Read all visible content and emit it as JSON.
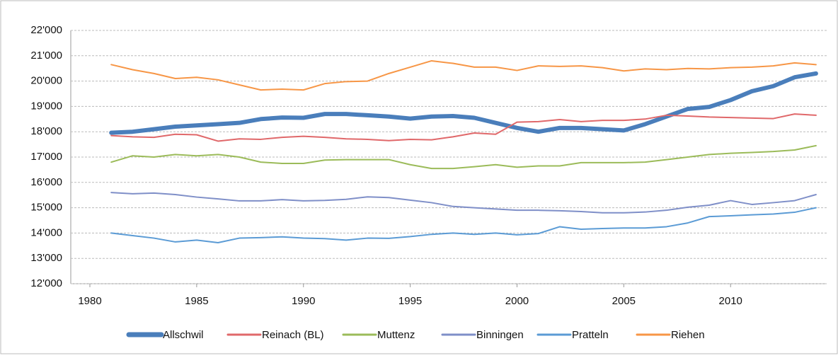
{
  "chart_data": {
    "type": "line",
    "x": [
      1981,
      1982,
      1983,
      1984,
      1985,
      1986,
      1987,
      1988,
      1989,
      1990,
      1991,
      1992,
      1993,
      1994,
      1995,
      1996,
      1997,
      1998,
      1999,
      2000,
      2001,
      2002,
      2003,
      2004,
      2005,
      2006,
      2007,
      2008,
      2009,
      2010,
      2011,
      2012,
      2013,
      2014
    ],
    "xlim": [
      1980,
      2014.5
    ],
    "xticks": [
      1980,
      1985,
      1990,
      1995,
      2000,
      2005,
      2010
    ],
    "ylim": [
      12000,
      22000
    ],
    "yticks": [
      {
        "value": 12000,
        "label": "12'000"
      },
      {
        "value": 13000,
        "label": "13'000"
      },
      {
        "value": 14000,
        "label": "14'000"
      },
      {
        "value": 15000,
        "label": "15'000"
      },
      {
        "value": 16000,
        "label": "16'000"
      },
      {
        "value": 17000,
        "label": "17'000"
      },
      {
        "value": 18000,
        "label": "18'000"
      },
      {
        "value": 19000,
        "label": "19'000"
      },
      {
        "value": 20000,
        "label": "20'000"
      },
      {
        "value": 21000,
        "label": "21'000"
      },
      {
        "value": 22000,
        "label": "22'000"
      }
    ],
    "grid": true,
    "legend": "bottom",
    "series": [
      {
        "name": "Allschwil",
        "color": "#4a7ebb",
        "width": 6,
        "values": [
          17960,
          18000,
          18100,
          18200,
          18250,
          18300,
          18350,
          18500,
          18560,
          18550,
          18700,
          18700,
          18650,
          18600,
          18520,
          18600,
          18620,
          18550,
          18350,
          18150,
          18000,
          18150,
          18150,
          18100,
          18050,
          18300,
          18600,
          18900,
          18980,
          19250,
          19600,
          19800,
          20150,
          20300
        ]
      },
      {
        "name": "Reinach (BL)",
        "color": "#e0686a",
        "width": 2,
        "values": [
          17850,
          17800,
          17780,
          17900,
          17880,
          17630,
          17720,
          17700,
          17780,
          17820,
          17780,
          17720,
          17700,
          17650,
          17700,
          17680,
          17800,
          17950,
          17900,
          18380,
          18400,
          18480,
          18400,
          18450,
          18450,
          18500,
          18650,
          18620,
          18580,
          18560,
          18540,
          18520,
          18700,
          18650
        ]
      },
      {
        "name": "Muttenz",
        "color": "#9bbb59",
        "width": 2,
        "values": [
          16800,
          17050,
          17000,
          17100,
          17050,
          17100,
          17000,
          16800,
          16750,
          16750,
          16880,
          16900,
          16900,
          16900,
          16700,
          16550,
          16550,
          16620,
          16700,
          16600,
          16650,
          16650,
          16780,
          16780,
          16780,
          16800,
          16900,
          17000,
          17100,
          17150,
          17180,
          17220,
          17280,
          17450
        ]
      },
      {
        "name": "Binningen",
        "color": "#7f8fc8",
        "width": 2,
        "values": [
          15600,
          15550,
          15580,
          15520,
          15420,
          15350,
          15270,
          15270,
          15320,
          15270,
          15290,
          15330,
          15430,
          15400,
          15300,
          15200,
          15050,
          15000,
          14950,
          14900,
          14900,
          14880,
          14850,
          14800,
          14800,
          14830,
          14900,
          15020,
          15100,
          15280,
          15130,
          15200,
          15280,
          15520
        ]
      },
      {
        "name": "Pratteln",
        "color": "#5b9bd5",
        "width": 2,
        "values": [
          14000,
          13900,
          13800,
          13650,
          13720,
          13620,
          13800,
          13820,
          13850,
          13800,
          13780,
          13720,
          13800,
          13790,
          13860,
          13950,
          14000,
          13950,
          14000,
          13930,
          13980,
          14250,
          14150,
          14180,
          14200,
          14200,
          14250,
          14400,
          14650,
          14680,
          14720,
          14750,
          14820,
          15000
        ]
      },
      {
        "name": "Riehen",
        "color": "#f79646",
        "width": 2,
        "values": [
          20650,
          20450,
          20300,
          20100,
          20150,
          20050,
          19850,
          19650,
          19680,
          19650,
          19900,
          19980,
          20000,
          20300,
          20550,
          20800,
          20700,
          20550,
          20550,
          20420,
          20600,
          20580,
          20600,
          20530,
          20400,
          20480,
          20450,
          20500,
          20480,
          20530,
          20550,
          20600,
          20720,
          20650
        ]
      }
    ]
  }
}
